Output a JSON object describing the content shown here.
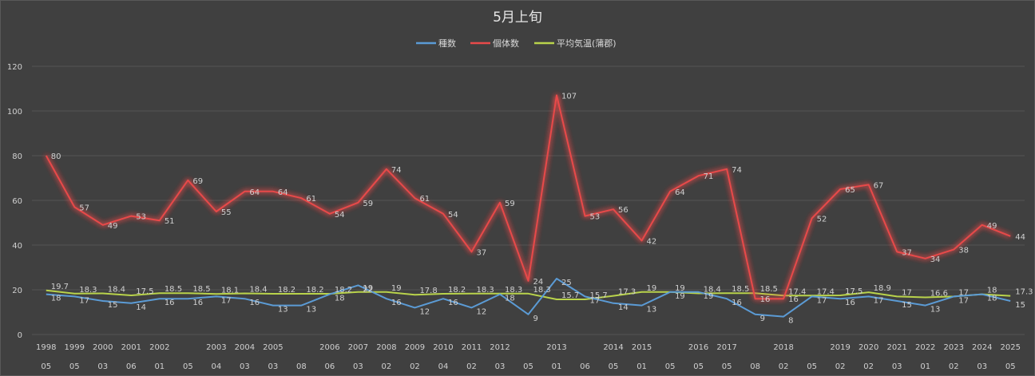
{
  "chart_data": {
    "type": "line",
    "title": "5月上旬",
    "ylim": [
      0,
      120
    ],
    "y_ticks": [
      0,
      20,
      40,
      60,
      80,
      100,
      120
    ],
    "grid": "horizontal",
    "legend_position": "top",
    "x_labels_year": [
      "1998",
      "1999",
      "2000",
      "2001",
      "2002",
      "",
      "2003",
      "2004",
      "2005",
      "",
      "2006",
      "2007",
      "2008",
      "2009",
      "2010",
      "2011",
      "2012",
      "",
      "2013",
      "",
      "2014",
      "2015",
      "",
      "2016",
      "2017",
      "",
      "2018",
      "",
      "2019",
      "2020",
      "2021",
      "2022",
      "2023",
      "2024",
      "2025"
    ],
    "x_labels_day": [
      "05",
      "05",
      "03",
      "06",
      "01",
      "05",
      "04",
      "03",
      "03",
      "08",
      "06",
      "03",
      "02",
      "02",
      "04",
      "02",
      "03",
      "05",
      "01",
      "06",
      "05",
      "01",
      "05",
      "05",
      "05",
      "08",
      "02",
      "05",
      "02",
      "02",
      "03",
      "01",
      "02",
      "03",
      "05"
    ],
    "series": [
      {
        "name": "種数",
        "color": "#5b9bd5",
        "glow": false,
        "values": [
          18,
          17,
          15,
          14,
          16,
          16,
          17,
          16,
          13,
          13,
          18,
          22,
          16,
          12,
          16,
          12,
          18,
          9,
          25,
          17,
          14,
          13,
          19,
          19,
          16,
          9,
          8,
          17,
          16,
          17,
          15,
          13,
          17,
          18,
          15
        ],
        "labels": [
          "18",
          "17",
          "15",
          "14",
          "16",
          "16",
          "17",
          "16",
          "13",
          "13",
          "18",
          "22",
          "16",
          "12",
          "16",
          "12",
          "18",
          "9",
          "25",
          "17",
          "14",
          "13",
          "19",
          "19",
          "16",
          "9",
          "8",
          "17",
          "16",
          "17",
          "15",
          "13",
          "17",
          "18",
          "15"
        ]
      },
      {
        "name": "個体数",
        "color": "#e84a4a",
        "glow": true,
        "values": [
          80,
          57,
          49,
          53,
          51,
          69,
          55,
          64,
          64,
          61,
          54,
          59,
          74,
          61,
          54,
          37,
          59,
          24,
          107,
          53,
          56,
          42,
          64,
          71,
          74,
          16,
          16,
          52,
          65,
          67,
          37,
          34,
          38,
          49,
          44
        ],
        "labels": [
          "80",
          "57",
          "49",
          "53",
          "51",
          "69",
          "55",
          "64",
          "64",
          "61",
          "54",
          "59",
          "74",
          "61",
          "54",
          "37",
          "59",
          "24",
          "107",
          "53",
          "56",
          "42",
          "64",
          "71",
          "74",
          "16",
          "16",
          "52",
          "65",
          "67",
          "37",
          "34",
          "38",
          "49",
          "44"
        ]
      },
      {
        "name": "平均気温(蒲郡)",
        "color": "#b9d34b",
        "glow": false,
        "values": [
          19.7,
          18.3,
          18.4,
          17.5,
          18.5,
          18.5,
          18.1,
          18.4,
          18.2,
          18.2,
          18.2,
          19,
          19,
          17.8,
          18.2,
          18.3,
          18.3,
          18.3,
          15.7,
          15.7,
          17.3,
          19,
          19,
          18.4,
          18.5,
          18.5,
          17.4,
          17.4,
          17.5,
          18.9,
          17,
          16.6,
          17,
          18,
          17.3
        ],
        "labels": [
          "19.7",
          "18.3",
          "18.4",
          "17.5",
          "18.5",
          "18.5",
          "18.1",
          "18.4",
          "18.2",
          "18.2",
          "18.2",
          "19",
          "19",
          "17.8",
          "18.2",
          "18.3",
          "18.3",
          "18.3",
          "15.7",
          "15.7",
          "17.3",
          "19",
          "19",
          "18.4",
          "18.5",
          "18.5",
          "17.4",
          "17.4",
          "17.5",
          "18.9",
          "17",
          "16.6",
          "17",
          "18",
          "17.3"
        ]
      }
    ]
  }
}
